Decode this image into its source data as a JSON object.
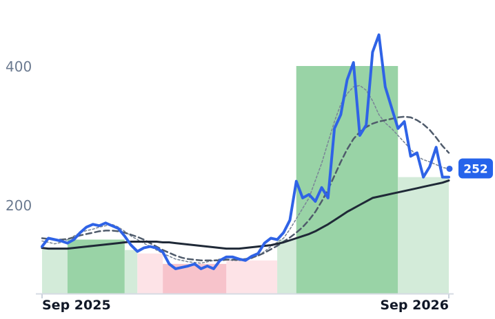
{
  "chart_data": {
    "type": "line",
    "x_ticks": [
      "Sep 2025",
      "Sep 2026"
    ],
    "y_ticks": [
      200,
      400
    ],
    "ylim": [
      70,
      480
    ],
    "grid": false,
    "last_value_label": "252",
    "colors": {
      "price": "#2f63e6",
      "ma_short": "#7b8797",
      "ma_mid": "#4f5b6b",
      "ma_long": "#1f2937",
      "band_up_strong": "#99d3a6",
      "band_up_light": "#d3ebd9",
      "band_down_strong": "#f7c3cb",
      "band_down_light": "#fde3e7",
      "badge": "#2563eb"
    },
    "bands": [
      {
        "x0": 0,
        "x1": 4,
        "value": 136,
        "kind": "up_light"
      },
      {
        "x0": 4,
        "x1": 13,
        "value": 150,
        "kind": "up_strong"
      },
      {
        "x0": 13,
        "x1": 15,
        "value": 135,
        "kind": "up_light"
      },
      {
        "x0": 15,
        "x1": 19,
        "value": 130,
        "kind": "down_light"
      },
      {
        "x0": 19,
        "x1": 29,
        "value": 115,
        "kind": "down_strong"
      },
      {
        "x0": 29,
        "x1": 37,
        "value": 120,
        "kind": "down_light"
      },
      {
        "x0": 37,
        "x1": 40,
        "value": 150,
        "kind": "up_light"
      },
      {
        "x0": 40,
        "x1": 56,
        "value": 400,
        "kind": "up_strong"
      },
      {
        "x0": 56,
        "x1": 64,
        "value": 240,
        "kind": "up_light"
      }
    ],
    "series": [
      {
        "key": "price",
        "values": [
          140,
          152,
          150,
          148,
          145,
          150,
          160,
          168,
          172,
          170,
          174,
          170,
          166,
          155,
          142,
          133,
          138,
          140,
          138,
          132,
          115,
          108,
          110,
          112,
          115,
          108,
          112,
          108,
          120,
          125,
          125,
          122,
          120,
          126,
          130,
          145,
          152,
          150,
          160,
          178,
          234,
          210,
          215,
          205,
          225,
          210,
          310,
          330,
          380,
          405,
          300,
          315,
          420,
          445,
          370,
          340,
          310,
          320,
          270,
          275,
          240,
          255,
          283,
          240,
          240
        ],
        "line_width": 4,
        "dash": ""
      },
      {
        "key": "ma_short",
        "values": [
          148,
          146,
          144,
          146,
          150,
          155,
          160,
          163,
          165,
          168,
          170,
          172,
          168,
          162,
          155,
          150,
          145,
          140,
          135,
          130,
          126,
          122,
          120,
          118,
          117,
          116,
          118,
          120,
          122,
          122,
          120,
          120,
          120,
          123,
          127,
          133,
          140,
          146,
          152,
          165,
          180,
          195,
          210,
          235,
          260,
          290,
          320,
          345,
          360,
          370,
          372,
          365,
          350,
          330,
          318,
          310,
          300,
          290,
          280,
          270,
          265,
          262,
          258,
          254,
          252
        ],
        "line_width": 1.6,
        "dash": "3 3"
      },
      {
        "key": "ma_mid",
        "values": [
          152,
          151,
          150,
          150,
          151,
          153,
          156,
          158,
          160,
          162,
          163,
          163,
          162,
          160,
          157,
          154,
          150,
          145,
          140,
          135,
          131,
          127,
          124,
          122,
          121,
          120,
          120,
          120,
          120,
          121,
          121,
          121,
          122,
          124,
          127,
          131,
          136,
          141,
          147,
          153,
          160,
          168,
          178,
          190,
          205,
          222,
          242,
          262,
          280,
          295,
          305,
          312,
          317,
          320,
          322,
          324,
          326,
          327,
          326,
          322,
          316,
          308,
          297,
          285,
          275
        ],
        "line_width": 2.5,
        "dash": "8 5"
      },
      {
        "key": "ma_long",
        "values": [
          138,
          137,
          137,
          137,
          137,
          138,
          139,
          140,
          141,
          142,
          143,
          144,
          145,
          146,
          147,
          147,
          147,
          147,
          147,
          146,
          146,
          145,
          144,
          143,
          142,
          141,
          140,
          139,
          138,
          137,
          137,
          137,
          138,
          139,
          140,
          141,
          142,
          144,
          146,
          149,
          152,
          155,
          158,
          162,
          167,
          172,
          178,
          184,
          190,
          195,
          200,
          205,
          210,
          212,
          214,
          216,
          218,
          220,
          222,
          224,
          226,
          228,
          230,
          232,
          235
        ],
        "line_width": 3,
        "dash": ""
      }
    ]
  }
}
